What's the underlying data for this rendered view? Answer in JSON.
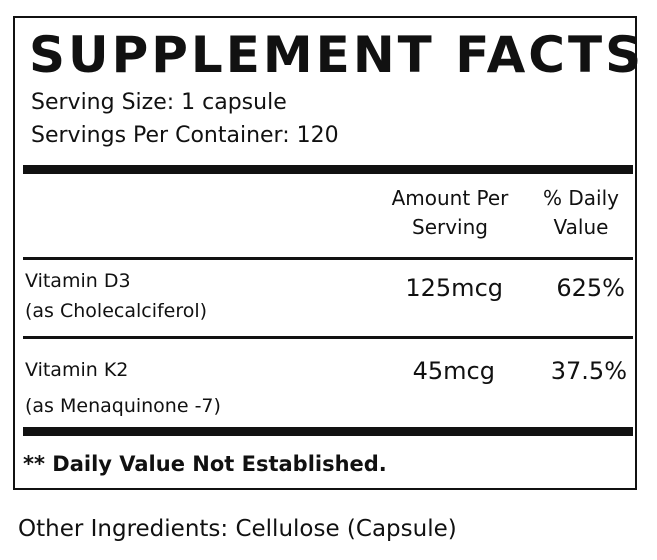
{
  "label": {
    "title": "SUPPLEMENT FACTS",
    "serving_size": "Serving Size: 1 capsule",
    "servings_per_container": "Servings Per Container: 120",
    "columns": {
      "amount_line1": "Amount Per",
      "amount_line2": "Serving",
      "dv_line1": "% Daily",
      "dv_line2": "Value"
    },
    "rows": [
      {
        "name": "Vitamin D3",
        "source": "(as Cholecalciferol)",
        "amount": "125mcg",
        "daily_value": "625%"
      },
      {
        "name": "Vitamin K2",
        "source": "(as Menaquinone -7)",
        "amount": "45mcg",
        "daily_value": "37.5%"
      }
    ],
    "footnote": "** Daily Value Not Established."
  },
  "other_ingredients": "Other Ingredients: Cellulose (Capsule)"
}
